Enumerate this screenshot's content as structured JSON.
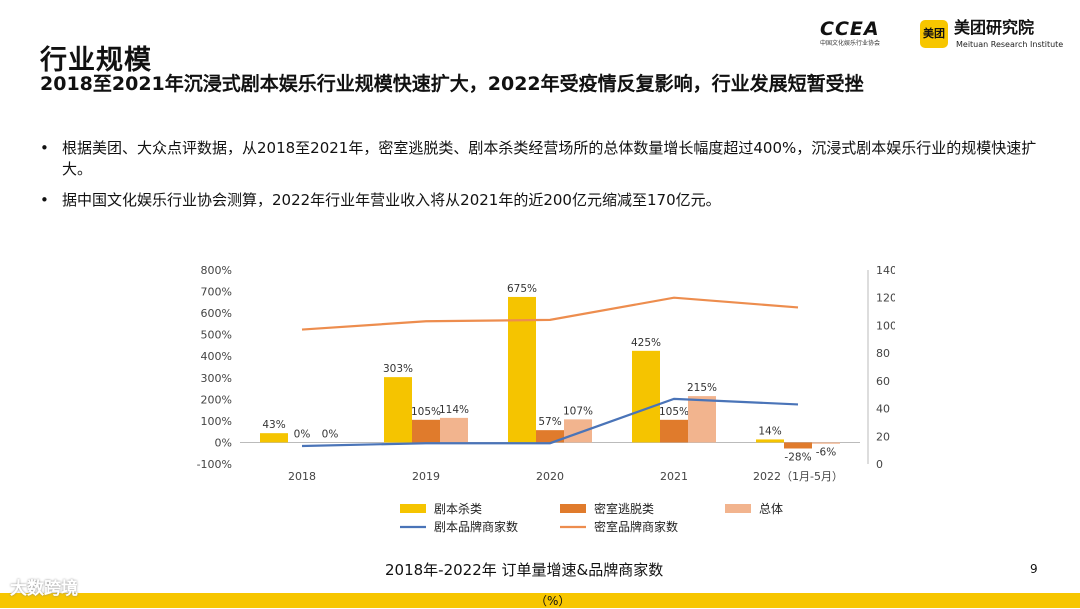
{
  "header": {
    "title": "行业规模",
    "subtitle": "2018至2021年沉浸式剧本娱乐行业规模快速扩大，2022年受疫情反复影响，行业发展短暂受挫"
  },
  "logos": {
    "ccea_text": "CCEA",
    "ccea_sub": "中国文化娱乐行业协会",
    "meituan_badge": "美团",
    "meituan_name": "美团研究院",
    "meituan_en": "Meituan Research Institute"
  },
  "bullets": [
    "根据美团、大众点评数据，从2018至2021年，密室逃脱类、剧本杀类经营场所的总体数量增长幅度超过400%，沉浸式剧本娱乐行业的规模快速扩大。",
    "据中国文化娱乐行业协会测算，2022年行业年营业收入将从2021年的近200亿元缩减至170亿元。"
  ],
  "chart_data": {
    "type": "bar",
    "categories": [
      "2018",
      "2019",
      "2020",
      "2021",
      "2022（1月-5月）"
    ],
    "series": [
      {
        "name": "剧本杀类",
        "kind": "bar",
        "axis": "left",
        "values": [
          43,
          303,
          675,
          425,
          14
        ],
        "labels": [
          "43%",
          "303%",
          "675%",
          "425%",
          "14%"
        ]
      },
      {
        "name": "密室逃脱类",
        "kind": "bar",
        "axis": "left",
        "values": [
          0,
          105,
          57,
          105,
          -28
        ],
        "labels": [
          "0%",
          "105%",
          "57%",
          "105%",
          "-28%"
        ]
      },
      {
        "name": "总体",
        "kind": "bar",
        "axis": "left",
        "values": [
          0,
          114,
          107,
          215,
          -6
        ],
        "labels": [
          "0%",
          "114%",
          "107%",
          "215%",
          "-6%"
        ]
      },
      {
        "name": "剧本品牌商家数",
        "kind": "line",
        "axis": "right",
        "values": [
          13,
          15,
          15,
          47,
          43
        ]
      },
      {
        "name": "密室品牌商家数",
        "kind": "line",
        "axis": "right",
        "values": [
          97,
          103,
          104,
          120,
          113
        ]
      }
    ],
    "left_axis": {
      "min": -100,
      "max": 800,
      "step": 100,
      "ticks": [
        "-100%",
        "0%",
        "100%",
        "200%",
        "300%",
        "400%",
        "500%",
        "600%",
        "700%",
        "800%"
      ]
    },
    "right_axis": {
      "min": 0,
      "max": 140,
      "step": 20,
      "ticks": [
        "0",
        "20",
        "40",
        "60",
        "80",
        "100",
        "120",
        "140"
      ]
    },
    "colors": {
      "剧本杀类": "#f5c400",
      "密室逃脱类": "#e07b2c",
      "总体": "#f2b48e",
      "剧本品牌商家数": "#4a74b8",
      "密室品牌商家数": "#ed8d4e"
    },
    "legend": "bottom"
  },
  "caption": "2018年-2022年 订单量增速&品牌商家数",
  "unit": "（%）",
  "page_number": "9",
  "watermark": "大数跨境"
}
